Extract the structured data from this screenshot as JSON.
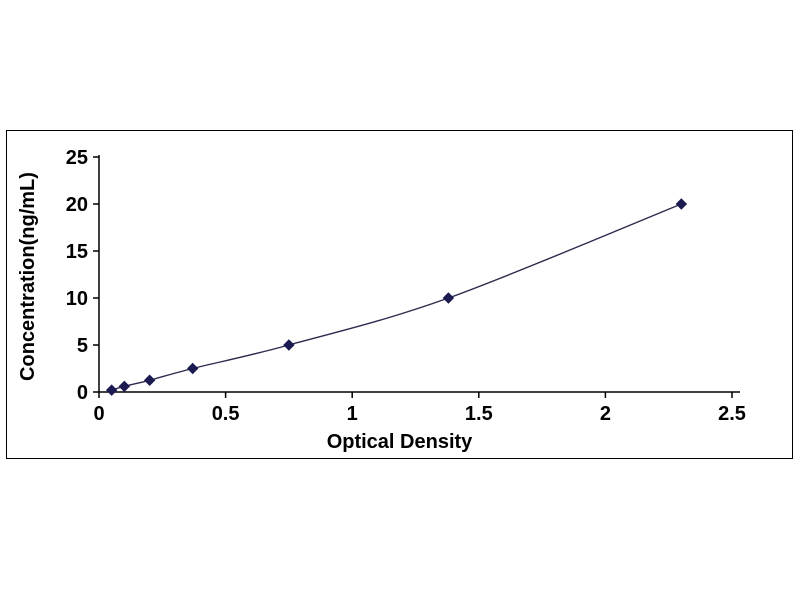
{
  "chart_data": {
    "type": "line",
    "title": "",
    "xlabel": "Optical Density",
    "ylabel": "Concentration(ng/mL)",
    "x": [
      0.05,
      0.1,
      0.2,
      0.37,
      0.75,
      1.38,
      2.3
    ],
    "y": [
      0.2,
      0.6,
      1.25,
      2.5,
      5,
      10,
      20
    ],
    "xlim": [
      0,
      2.5
    ],
    "ylim": [
      0,
      25
    ],
    "xticks": [
      0,
      0.5,
      1,
      1.5,
      2,
      2.5
    ],
    "xtick_labels": [
      "0",
      "0.5",
      "1",
      "1.5",
      "2",
      "2.5"
    ],
    "yticks": [
      0,
      5,
      10,
      15,
      20,
      25
    ],
    "ytick_labels": [
      "0",
      "5",
      "10",
      "15",
      "20",
      "25"
    ],
    "grid": false,
    "legend": "none",
    "marker": "diamond",
    "line_color": "#2b2b4e",
    "marker_color": "#1b1b52",
    "axis_color": "#000000",
    "tick_font_size": 20,
    "plot_bg": "#ffffff"
  }
}
